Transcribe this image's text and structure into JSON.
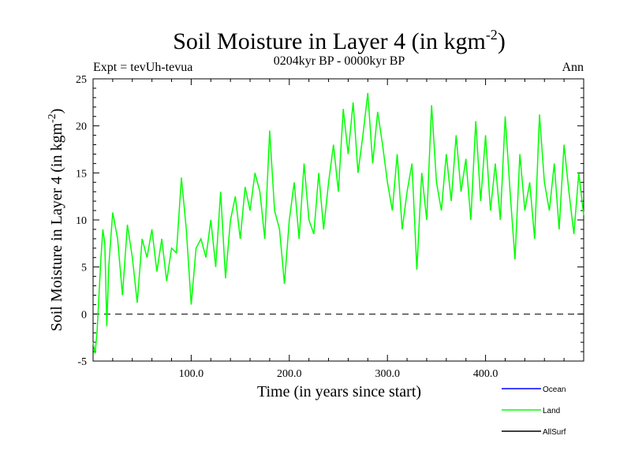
{
  "chart_data": {
    "type": "line",
    "title": "Soil Moisture in Layer 4 (in kgm",
    "title_superscript": "-2",
    "title_suffix": ")",
    "subtitle_left": "Expt = tevUh-tevua",
    "subtitle_center": "0204kyr BP - 0000kyr BP",
    "subtitle_right": "Ann",
    "xlabel": "Time (in years since start)",
    "ylabel": "Soil Moisture in Layer 4 (in kgm",
    "ylabel_superscript": "-2",
    "ylabel_suffix": ")",
    "xlim": [
      0,
      500
    ],
    "ylim": [
      -5,
      25
    ],
    "x_ticks": [
      100,
      200,
      300,
      400
    ],
    "x_tick_labels": [
      "100.0",
      "200.0",
      "300.0",
      "400.0"
    ],
    "y_ticks": [
      -5,
      0,
      5,
      10,
      15,
      20,
      25
    ],
    "y_tick_labels": [
      "-5",
      "0",
      "5",
      "10",
      "15",
      "20",
      "25"
    ],
    "zero_line": 0,
    "legend": [
      {
        "name": "Ocean",
        "color": "#0000ff"
      },
      {
        "name": "Land",
        "color": "#00ff00"
      },
      {
        "name": "AllSurf",
        "color": "#000000"
      }
    ],
    "series": [
      {
        "name": "Land",
        "color": "#00ff00",
        "x": [
          0,
          2,
          4,
          6,
          8,
          10,
          12,
          14,
          16,
          18,
          20,
          25,
          30,
          35,
          40,
          45,
          50,
          55,
          60,
          65,
          70,
          75,
          80,
          85,
          90,
          95,
          100,
          105,
          110,
          115,
          120,
          125,
          130,
          135,
          140,
          145,
          150,
          155,
          160,
          165,
          170,
          175,
          180,
          185,
          190,
          195,
          200,
          205,
          210,
          215,
          220,
          225,
          230,
          235,
          240,
          245,
          250,
          255,
          260,
          265,
          270,
          275,
          280,
          285,
          290,
          295,
          300,
          305,
          310,
          315,
          320,
          325,
          330,
          335,
          340,
          345,
          350,
          355,
          360,
          365,
          370,
          375,
          380,
          385,
          390,
          395,
          400,
          405,
          410,
          415,
          420,
          425,
          430,
          435,
          440,
          445,
          450,
          455,
          460,
          465,
          470,
          475,
          480,
          485,
          490,
          495,
          500
        ],
        "values": [
          -3,
          -4.2,
          -2,
          2,
          6,
          9,
          7.5,
          -1.3,
          5,
          8,
          10.8,
          8,
          2,
          9.5,
          6,
          1.2,
          8,
          6,
          9,
          4.5,
          8,
          3.5,
          7,
          6.5,
          14.5,
          9,
          1,
          7,
          8,
          6,
          10,
          5,
          13,
          3.8,
          10,
          12.5,
          8,
          13.5,
          11,
          15,
          13,
          8,
          19.5,
          11,
          9,
          3.2,
          10,
          14,
          8,
          16,
          10,
          8.5,
          15,
          9,
          14,
          18,
          13,
          21.8,
          17,
          22.5,
          15,
          19,
          23.5,
          16,
          21.5,
          18,
          14,
          11,
          17,
          9,
          13,
          16,
          4.7,
          15,
          10,
          22.2,
          14,
          11,
          17,
          12,
          19,
          13,
          16.5,
          10,
          20.5,
          12,
          19,
          11,
          16,
          10,
          21,
          13,
          5.8,
          17,
          11,
          14,
          8,
          21.2,
          14,
          11,
          16,
          9,
          18,
          13,
          8.5,
          15,
          10.5
        ]
      }
    ]
  }
}
